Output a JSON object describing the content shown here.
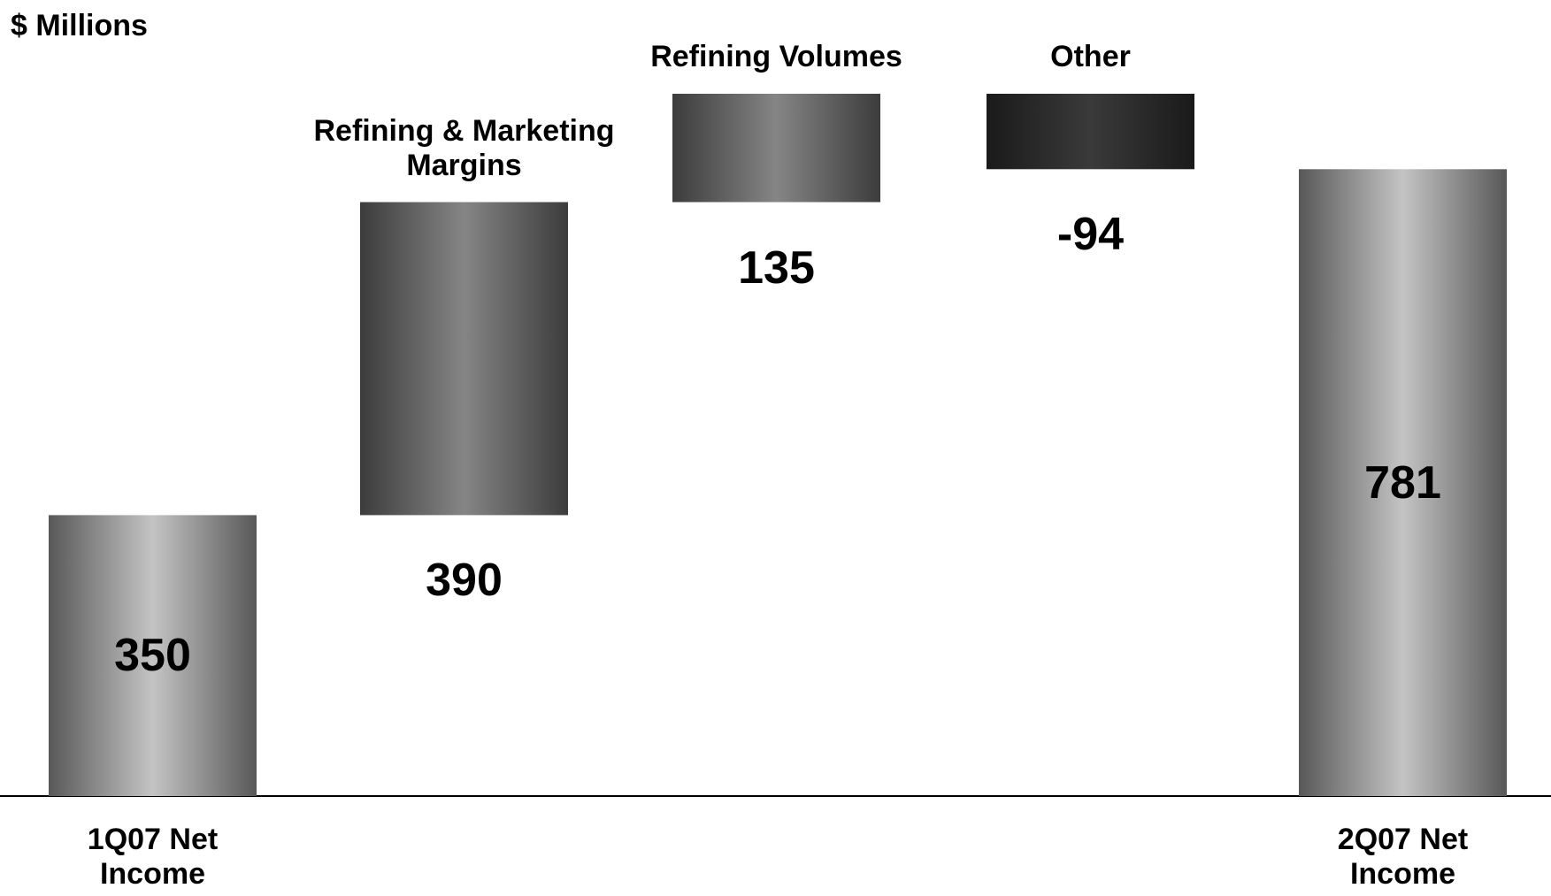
{
  "chart_data": {
    "type": "waterfall",
    "y_label": "$ Millions",
    "categories": [
      "1Q07 Net Income",
      "Refining & Marketing Margins",
      "Refining Volumes",
      "Other",
      "2Q07 Net Income"
    ],
    "values": [
      350,
      390,
      135,
      -94,
      781
    ],
    "totals": [
      true,
      false,
      false,
      false,
      true
    ],
    "colors": [
      "#c4c4c4",
      "#858585",
      "#858585",
      "#3a3a3a",
      "#c4c4c4"
    ]
  }
}
